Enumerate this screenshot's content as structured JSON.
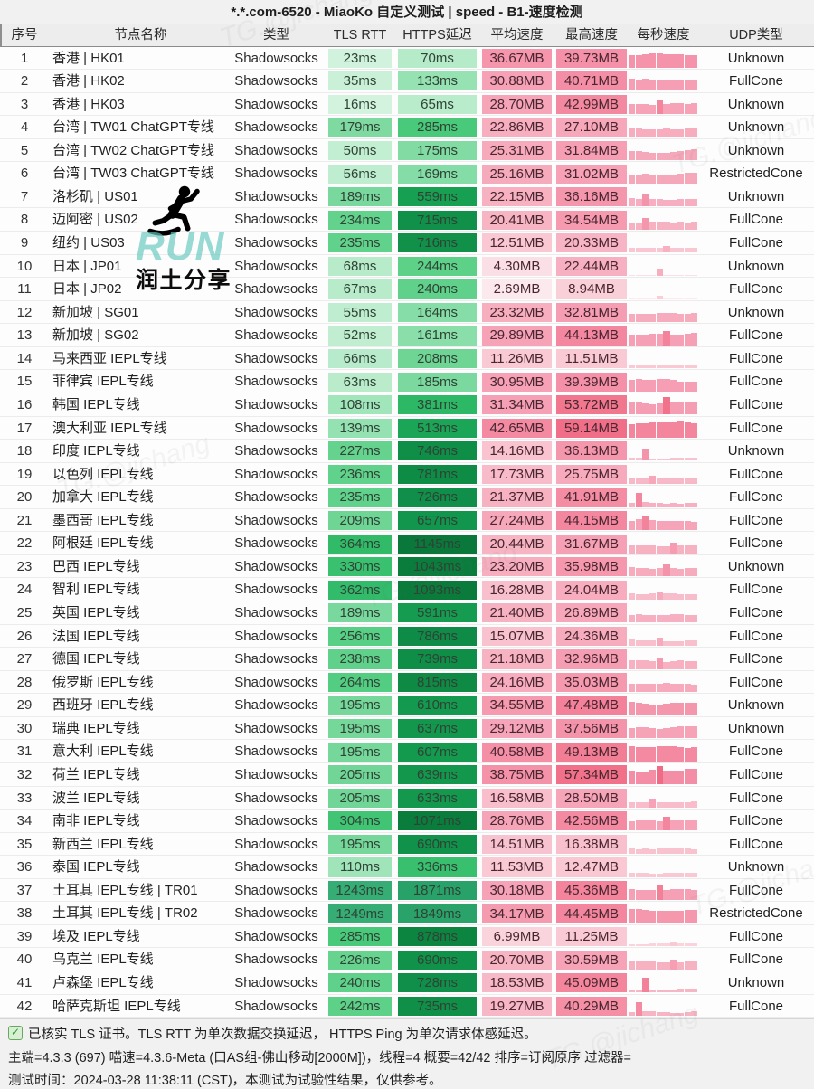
{
  "title": "*.*.com-6520 - MiaoKo 自定义测试 | speed - B1-速度检测",
  "headers": {
    "index": "序号",
    "name": "节点名称",
    "type": "类型",
    "tls_rtt": "TLS RTT",
    "https_delay": "HTTPS延迟",
    "avg_speed": "平均速度",
    "max_speed": "最高速度",
    "per_second": "每秒速度",
    "udp_type": "UDP类型"
  },
  "rows": [
    {
      "index": 1,
      "name": "香港 | HK01",
      "type": "Shadowsocks",
      "tls_ms": 23,
      "https_ms": 70,
      "avg_mb": "36.67MB",
      "max_mb": "39.73MB",
      "avg": 36.67,
      "max": 39.73,
      "udp": "Unknown"
    },
    {
      "index": 2,
      "name": "香港 | HK02",
      "type": "Shadowsocks",
      "tls_ms": 35,
      "https_ms": 133,
      "avg_mb": "30.88MB",
      "max_mb": "40.71MB",
      "avg": 30.88,
      "max": 40.71,
      "udp": "FullCone"
    },
    {
      "index": 3,
      "name": "香港 | HK03",
      "type": "Shadowsocks",
      "tls_ms": 16,
      "https_ms": 65,
      "avg_mb": "28.70MB",
      "max_mb": "42.99MB",
      "avg": 28.7,
      "max": 42.99,
      "udp": "Unknown"
    },
    {
      "index": 4,
      "name": "台湾 | TW01 ChatGPT专线",
      "type": "Shadowsocks",
      "tls_ms": 179,
      "https_ms": 285,
      "avg_mb": "22.86MB",
      "max_mb": "27.10MB",
      "avg": 22.86,
      "max": 27.1,
      "udp": "Unknown"
    },
    {
      "index": 5,
      "name": "台湾 | TW02 ChatGPT专线",
      "type": "Shadowsocks",
      "tls_ms": 50,
      "https_ms": 175,
      "avg_mb": "25.31MB",
      "max_mb": "31.84MB",
      "avg": 25.31,
      "max": 31.84,
      "udp": "Unknown"
    },
    {
      "index": 6,
      "name": "台湾 | TW03 ChatGPT专线",
      "type": "Shadowsocks",
      "tls_ms": 56,
      "https_ms": 169,
      "avg_mb": "25.16MB",
      "max_mb": "31.02MB",
      "avg": 25.16,
      "max": 31.02,
      "udp": "RestrictedCone"
    },
    {
      "index": 7,
      "name": "洛杉矶 | US01",
      "type": "Shadowsocks",
      "tls_ms": 189,
      "https_ms": 559,
      "avg_mb": "22.15MB",
      "max_mb": "36.16MB",
      "avg": 22.15,
      "max": 36.16,
      "udp": "Unknown"
    },
    {
      "index": 8,
      "name": "迈阿密 | US02",
      "type": "Shadowsocks",
      "tls_ms": 234,
      "https_ms": 715,
      "avg_mb": "20.41MB",
      "max_mb": "34.54MB",
      "avg": 20.41,
      "max": 34.54,
      "udp": "FullCone"
    },
    {
      "index": 9,
      "name": "纽约 | US03",
      "type": "Shadowsocks",
      "tls_ms": 235,
      "https_ms": 716,
      "avg_mb": "12.51MB",
      "max_mb": "20.33MB",
      "avg": 12.51,
      "max": 20.33,
      "udp": "FullCone"
    },
    {
      "index": 10,
      "name": "日本 | JP01",
      "type": "Shadowsocks",
      "tls_ms": 68,
      "https_ms": 244,
      "avg_mb": "4.30MB",
      "max_mb": "22.44MB",
      "avg": 4.3,
      "max": 22.44,
      "udp": "Unknown"
    },
    {
      "index": 11,
      "name": "日本 | JP02",
      "type": "Shadowsocks",
      "tls_ms": 67,
      "https_ms": 240,
      "avg_mb": "2.69MB",
      "max_mb": "8.94MB",
      "avg": 2.69,
      "max": 8.94,
      "udp": "FullCone"
    },
    {
      "index": 12,
      "name": "新加坡 | SG01",
      "type": "Shadowsocks",
      "tls_ms": 55,
      "https_ms": 164,
      "avg_mb": "23.32MB",
      "max_mb": "32.81MB",
      "avg": 23.32,
      "max": 32.81,
      "udp": "Unknown"
    },
    {
      "index": 13,
      "name": "新加坡 | SG02",
      "type": "Shadowsocks",
      "tls_ms": 52,
      "https_ms": 161,
      "avg_mb": "29.89MB",
      "max_mb": "44.13MB",
      "avg": 29.89,
      "max": 44.13,
      "udp": "FullCone"
    },
    {
      "index": 14,
      "name": "马来西亚 IEPL专线",
      "type": "Shadowsocks",
      "tls_ms": 66,
      "https_ms": 208,
      "avg_mb": "11.26MB",
      "max_mb": "11.51MB",
      "avg": 11.26,
      "max": 11.51,
      "udp": "FullCone"
    },
    {
      "index": 15,
      "name": "菲律宾 IEPL专线",
      "type": "Shadowsocks",
      "tls_ms": 63,
      "https_ms": 185,
      "avg_mb": "30.95MB",
      "max_mb": "39.39MB",
      "avg": 30.95,
      "max": 39.39,
      "udp": "FullCone"
    },
    {
      "index": 16,
      "name": "韩国 IEPL专线",
      "type": "Shadowsocks",
      "tls_ms": 108,
      "https_ms": 381,
      "avg_mb": "31.34MB",
      "max_mb": "53.72MB",
      "avg": 31.34,
      "max": 53.72,
      "udp": "FullCone"
    },
    {
      "index": 17,
      "name": "澳大利亚 IEPL专线",
      "type": "Shadowsocks",
      "tls_ms": 139,
      "https_ms": 513,
      "avg_mb": "42.65MB",
      "max_mb": "59.14MB",
      "avg": 42.65,
      "max": 59.14,
      "udp": "FullCone"
    },
    {
      "index": 18,
      "name": "印度 IEPL专线",
      "type": "Shadowsocks",
      "tls_ms": 227,
      "https_ms": 746,
      "avg_mb": "14.16MB",
      "max_mb": "36.13MB",
      "avg": 14.16,
      "max": 36.13,
      "udp": "Unknown"
    },
    {
      "index": 19,
      "name": "以色列 IEPL专线",
      "type": "Shadowsocks",
      "tls_ms": 236,
      "https_ms": 781,
      "avg_mb": "17.73MB",
      "max_mb": "25.75MB",
      "avg": 17.73,
      "max": 25.75,
      "udp": "FullCone"
    },
    {
      "index": 20,
      "name": "加拿大 IEPL专线",
      "type": "Shadowsocks",
      "tls_ms": 235,
      "https_ms": 726,
      "avg_mb": "21.37MB",
      "max_mb": "41.91MB",
      "avg": 21.37,
      "max": 41.91,
      "udp": "FullCone"
    },
    {
      "index": 21,
      "name": "墨西哥 IEPL专线",
      "type": "Shadowsocks",
      "tls_ms": 209,
      "https_ms": 657,
      "avg_mb": "27.24MB",
      "max_mb": "44.15MB",
      "avg": 27.24,
      "max": 44.15,
      "udp": "FullCone"
    },
    {
      "index": 22,
      "name": "阿根廷 IEPL专线",
      "type": "Shadowsocks",
      "tls_ms": 364,
      "https_ms": 1145,
      "avg_mb": "20.44MB",
      "max_mb": "31.67MB",
      "avg": 20.44,
      "max": 31.67,
      "udp": "FullCone"
    },
    {
      "index": 23,
      "name": "巴西 IEPL专线",
      "type": "Shadowsocks",
      "tls_ms": 330,
      "https_ms": 1043,
      "avg_mb": "23.20MB",
      "max_mb": "35.98MB",
      "avg": 23.2,
      "max": 35.98,
      "udp": "Unknown"
    },
    {
      "index": 24,
      "name": "智利 IEPL专线",
      "type": "Shadowsocks",
      "tls_ms": 362,
      "https_ms": 1093,
      "avg_mb": "16.28MB",
      "max_mb": "24.04MB",
      "avg": 16.28,
      "max": 24.04,
      "udp": "FullCone"
    },
    {
      "index": 25,
      "name": "英国 IEPL专线",
      "type": "Shadowsocks",
      "tls_ms": 189,
      "https_ms": 591,
      "avg_mb": "21.40MB",
      "max_mb": "26.89MB",
      "avg": 21.4,
      "max": 26.89,
      "udp": "FullCone"
    },
    {
      "index": 26,
      "name": "法国 IEPL专线",
      "type": "Shadowsocks",
      "tls_ms": 256,
      "https_ms": 786,
      "avg_mb": "15.07MB",
      "max_mb": "24.36MB",
      "avg": 15.07,
      "max": 24.36,
      "udp": "FullCone"
    },
    {
      "index": 27,
      "name": "德国 IEPL专线",
      "type": "Shadowsocks",
      "tls_ms": 238,
      "https_ms": 739,
      "avg_mb": "21.18MB",
      "max_mb": "32.96MB",
      "avg": 21.18,
      "max": 32.96,
      "udp": "FullCone"
    },
    {
      "index": 28,
      "name": "俄罗斯 IEPL专线",
      "type": "Shadowsocks",
      "tls_ms": 264,
      "https_ms": 815,
      "avg_mb": "24.16MB",
      "max_mb": "35.03MB",
      "avg": 24.16,
      "max": 35.03,
      "udp": "FullCone"
    },
    {
      "index": 29,
      "name": "西班牙 IEPL专线",
      "type": "Shadowsocks",
      "tls_ms": 195,
      "https_ms": 610,
      "avg_mb": "34.55MB",
      "max_mb": "47.48MB",
      "avg": 34.55,
      "max": 47.48,
      "udp": "Unknown"
    },
    {
      "index": 30,
      "name": "瑞典 IEPL专线",
      "type": "Shadowsocks",
      "tls_ms": 195,
      "https_ms": 637,
      "avg_mb": "29.12MB",
      "max_mb": "37.56MB",
      "avg": 29.12,
      "max": 37.56,
      "udp": "Unknown"
    },
    {
      "index": 31,
      "name": "意大利 IEPL专线",
      "type": "Shadowsocks",
      "tls_ms": 195,
      "https_ms": 607,
      "avg_mb": "40.58MB",
      "max_mb": "49.13MB",
      "avg": 40.58,
      "max": 49.13,
      "udp": "FullCone"
    },
    {
      "index": 32,
      "name": "荷兰 IEPL专线",
      "type": "Shadowsocks",
      "tls_ms": 205,
      "https_ms": 639,
      "avg_mb": "38.75MB",
      "max_mb": "57.34MB",
      "avg": 38.75,
      "max": 57.34,
      "udp": "FullCone"
    },
    {
      "index": 33,
      "name": "波兰 IEPL专线",
      "type": "Shadowsocks",
      "tls_ms": 205,
      "https_ms": 633,
      "avg_mb": "16.58MB",
      "max_mb": "28.50MB",
      "avg": 16.58,
      "max": 28.5,
      "udp": "FullCone"
    },
    {
      "index": 34,
      "name": "南非 IEPL专线",
      "type": "Shadowsocks",
      "tls_ms": 304,
      "https_ms": 1071,
      "avg_mb": "28.76MB",
      "max_mb": "42.56MB",
      "avg": 28.76,
      "max": 42.56,
      "udp": "FullCone"
    },
    {
      "index": 35,
      "name": "新西兰 IEPL专线",
      "type": "Shadowsocks",
      "tls_ms": 195,
      "https_ms": 690,
      "avg_mb": "14.51MB",
      "max_mb": "16.38MB",
      "avg": 14.51,
      "max": 16.38,
      "udp": "FullCone"
    },
    {
      "index": 36,
      "name": "泰国 IEPL专线",
      "type": "Shadowsocks",
      "tls_ms": 110,
      "https_ms": 336,
      "avg_mb": "11.53MB",
      "max_mb": "12.47MB",
      "avg": 11.53,
      "max": 12.47,
      "udp": "Unknown"
    },
    {
      "index": 37,
      "name": "土耳其 IEPL专线 | TR01",
      "type": "Shadowsocks",
      "tls_ms": 1243,
      "https_ms": 1871,
      "avg_mb": "30.18MB",
      "max_mb": "45.36MB",
      "avg": 30.18,
      "max": 45.36,
      "udp": "FullCone"
    },
    {
      "index": 38,
      "name": "土耳其 IEPL专线 | TR02",
      "type": "Shadowsocks",
      "tls_ms": 1249,
      "https_ms": 1849,
      "avg_mb": "34.17MB",
      "max_mb": "44.45MB",
      "avg": 34.17,
      "max": 44.45,
      "udp": "RestrictedCone"
    },
    {
      "index": 39,
      "name": "埃及 IEPL专线",
      "type": "Shadowsocks",
      "tls_ms": 285,
      "https_ms": 878,
      "avg_mb": "6.99MB",
      "max_mb": "11.25MB",
      "avg": 6.99,
      "max": 11.25,
      "udp": "FullCone"
    },
    {
      "index": 40,
      "name": "乌克兰 IEPL专线",
      "type": "Shadowsocks",
      "tls_ms": 226,
      "https_ms": 690,
      "avg_mb": "20.70MB",
      "max_mb": "30.59MB",
      "avg": 20.7,
      "max": 30.59,
      "udp": "FullCone"
    },
    {
      "index": 41,
      "name": "卢森堡 IEPL专线",
      "type": "Shadowsocks",
      "tls_ms": 240,
      "https_ms": 728,
      "avg_mb": "18.53MB",
      "max_mb": "45.09MB",
      "avg": 18.53,
      "max": 45.09,
      "udp": "Unknown"
    },
    {
      "index": 42,
      "name": "哈萨克斯坦 IEPL专线",
      "type": "Shadowsocks",
      "tls_ms": 242,
      "https_ms": 735,
      "avg_mb": "19.27MB",
      "max_mb": "40.29MB",
      "avg": 19.27,
      "max": 40.29,
      "udp": "FullCone"
    }
  ],
  "footer": {
    "line1": "已核实 TLS 证书。TLS RTT 为单次数据交换延迟， HTTPS Ping 为单次请求体感延迟。",
    "line2": "主端=4.3.3 (697) 喵速=4.3.6-Meta (口AS组-佛山移动[2000M])，线程=4 概要=42/42 排序=订阅原序 过滤器=",
    "line3": "测试时间：2024-03-28 11:38:11 (CST)，本测试为试验性结果，仅供参考。"
  },
  "watermark": {
    "run_label": "RUN",
    "share_label": "润土分享",
    "diagonal_label": "TG.@jichang"
  },
  "colors": {
    "green_light": "#ddf6e6",
    "green_dark": "#076f33",
    "green_overload": "#36ad74",
    "pink_light": "#fdf3f5",
    "pink_dark": "#f06c86",
    "run_teal": "#65c7be"
  }
}
